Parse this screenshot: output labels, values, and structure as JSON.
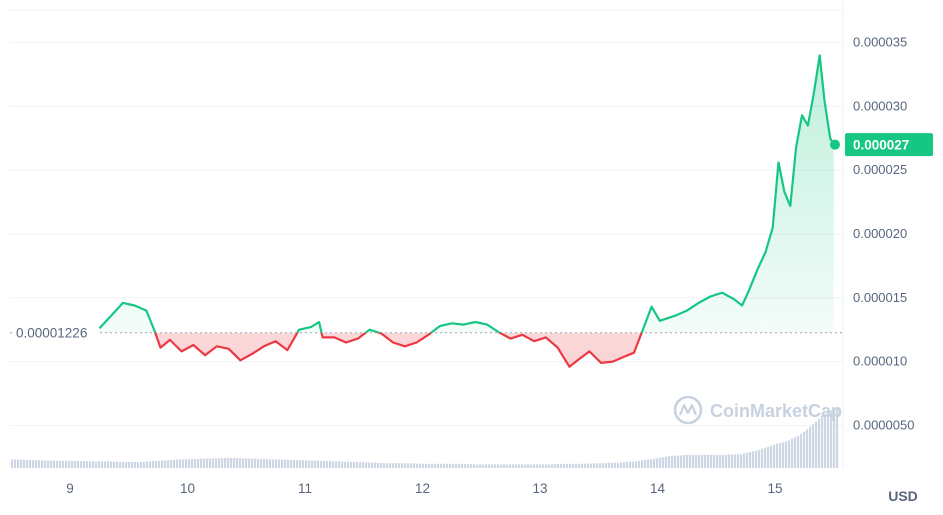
{
  "chart_data": {
    "type": "line",
    "currency_label": "USD",
    "watermark": "CoinMarketCap",
    "baseline": {
      "value": 1.226e-05,
      "label": "0.00001226"
    },
    "current": {
      "value": 2.7e-05,
      "label": "0.000027"
    },
    "colors": {
      "up": "#16c784",
      "down": "#ea3943",
      "volume": "#cfd6e4",
      "grid": "#eff2f5",
      "text": "#58667e",
      "watermark": "#c8d1e0"
    },
    "y_axis": {
      "ticks": [
        {
          "value": 3.5e-05,
          "label": "0.000035"
        },
        {
          "value": 3e-05,
          "label": "0.000030"
        },
        {
          "value": 2.5e-05,
          "label": "0.000025"
        },
        {
          "value": 2e-05,
          "label": "0.000020"
        },
        {
          "value": 1.5e-05,
          "label": "0.000015"
        },
        {
          "value": 1e-05,
          "label": "0.000010"
        },
        {
          "value": 5e-06,
          "label": "0.0000050"
        }
      ]
    },
    "x_axis": {
      "ticks": [
        {
          "day": 9,
          "label": "9"
        },
        {
          "day": 10,
          "label": "10"
        },
        {
          "day": 11,
          "label": "11"
        },
        {
          "day": 12,
          "label": "12"
        },
        {
          "day": 13,
          "label": "13"
        },
        {
          "day": 14,
          "label": "14"
        },
        {
          "day": 15,
          "label": "15"
        }
      ],
      "range": [
        8.5,
        15.55
      ]
    },
    "price_series": [
      [
        9.25,
        1.26e-05
      ],
      [
        9.35,
        1.36e-05
      ],
      [
        9.45,
        1.46e-05
      ],
      [
        9.55,
        1.44e-05
      ],
      [
        9.65,
        1.4e-05
      ],
      [
        9.72,
        1.24e-05
      ],
      [
        9.77,
        1.11e-05
      ],
      [
        9.85,
        1.17e-05
      ],
      [
        9.95,
        1.08e-05
      ],
      [
        10.05,
        1.13e-05
      ],
      [
        10.15,
        1.05e-05
      ],
      [
        10.25,
        1.12e-05
      ],
      [
        10.35,
        1.1e-05
      ],
      [
        10.45,
        1.01e-05
      ],
      [
        10.55,
        1.06e-05
      ],
      [
        10.65,
        1.12e-05
      ],
      [
        10.75,
        1.16e-05
      ],
      [
        10.85,
        1.09e-05
      ],
      [
        10.95,
        1.25e-05
      ],
      [
        11.05,
        1.27e-05
      ],
      [
        11.12,
        1.31e-05
      ],
      [
        11.15,
        1.19e-05
      ],
      [
        11.25,
        1.19e-05
      ],
      [
        11.35,
        1.15e-05
      ],
      [
        11.45,
        1.18e-05
      ],
      [
        11.55,
        1.25e-05
      ],
      [
        11.65,
        1.22e-05
      ],
      [
        11.75,
        1.15e-05
      ],
      [
        11.85,
        1.12e-05
      ],
      [
        11.95,
        1.15e-05
      ],
      [
        12.05,
        1.21e-05
      ],
      [
        12.15,
        1.28e-05
      ],
      [
        12.25,
        1.3e-05
      ],
      [
        12.35,
        1.29e-05
      ],
      [
        12.45,
        1.31e-05
      ],
      [
        12.55,
        1.29e-05
      ],
      [
        12.65,
        1.23e-05
      ],
      [
        12.75,
        1.18e-05
      ],
      [
        12.85,
        1.21e-05
      ],
      [
        12.95,
        1.16e-05
      ],
      [
        13.05,
        1.19e-05
      ],
      [
        13.15,
        1.11e-05
      ],
      [
        13.25,
        9.6e-06
      ],
      [
        13.32,
        1.01e-05
      ],
      [
        13.42,
        1.08e-05
      ],
      [
        13.52,
        9.9e-06
      ],
      [
        13.62,
        1e-05
      ],
      [
        13.72,
        1.04e-05
      ],
      [
        13.8,
        1.07e-05
      ],
      [
        13.9,
        1.31e-05
      ],
      [
        13.95,
        1.43e-05
      ],
      [
        14.02,
        1.32e-05
      ],
      [
        14.15,
        1.36e-05
      ],
      [
        14.25,
        1.4e-05
      ],
      [
        14.35,
        1.46e-05
      ],
      [
        14.45,
        1.51e-05
      ],
      [
        14.55,
        1.54e-05
      ],
      [
        14.65,
        1.49e-05
      ],
      [
        14.72,
        1.44e-05
      ],
      [
        14.78,
        1.56e-05
      ],
      [
        14.85,
        1.72e-05
      ],
      [
        14.92,
        1.86e-05
      ],
      [
        14.98,
        2.05e-05
      ],
      [
        15.03,
        2.56e-05
      ],
      [
        15.08,
        2.33e-05
      ],
      [
        15.13,
        2.22e-05
      ],
      [
        15.18,
        2.68e-05
      ],
      [
        15.23,
        2.93e-05
      ],
      [
        15.28,
        2.85e-05
      ],
      [
        15.33,
        3.1e-05
      ],
      [
        15.38,
        3.4e-05
      ],
      [
        15.42,
        3.05e-05
      ],
      [
        15.47,
        2.75e-05
      ],
      [
        15.5,
        2.7e-05
      ]
    ],
    "volume_series": [
      [
        8.55,
        0.14
      ],
      [
        8.7,
        0.13
      ],
      [
        8.85,
        0.12
      ],
      [
        9.0,
        0.12
      ],
      [
        9.15,
        0.11
      ],
      [
        9.3,
        0.11
      ],
      [
        9.45,
        0.1
      ],
      [
        9.6,
        0.1
      ],
      [
        9.75,
        0.12
      ],
      [
        9.9,
        0.14
      ],
      [
        10.05,
        0.15
      ],
      [
        10.2,
        0.16
      ],
      [
        10.35,
        0.17
      ],
      [
        10.5,
        0.16
      ],
      [
        10.65,
        0.15
      ],
      [
        10.8,
        0.14
      ],
      [
        10.95,
        0.13
      ],
      [
        11.1,
        0.12
      ],
      [
        11.25,
        0.11
      ],
      [
        11.4,
        0.1
      ],
      [
        11.55,
        0.09
      ],
      [
        11.7,
        0.08
      ],
      [
        11.85,
        0.08
      ],
      [
        12.0,
        0.07
      ],
      [
        12.15,
        0.07
      ],
      [
        12.3,
        0.07
      ],
      [
        12.45,
        0.06
      ],
      [
        12.6,
        0.06
      ],
      [
        12.75,
        0.06
      ],
      [
        12.9,
        0.06
      ],
      [
        13.05,
        0.06
      ],
      [
        13.2,
        0.07
      ],
      [
        13.35,
        0.07
      ],
      [
        13.5,
        0.08
      ],
      [
        13.65,
        0.09
      ],
      [
        13.8,
        0.11
      ],
      [
        13.95,
        0.15
      ],
      [
        14.1,
        0.2
      ],
      [
        14.25,
        0.22
      ],
      [
        14.4,
        0.22
      ],
      [
        14.55,
        0.22
      ],
      [
        14.7,
        0.23
      ],
      [
        14.85,
        0.3
      ],
      [
        15.0,
        0.4
      ],
      [
        15.1,
        0.45
      ],
      [
        15.2,
        0.55
      ],
      [
        15.3,
        0.7
      ],
      [
        15.4,
        0.88
      ],
      [
        15.5,
        1.0
      ]
    ]
  }
}
